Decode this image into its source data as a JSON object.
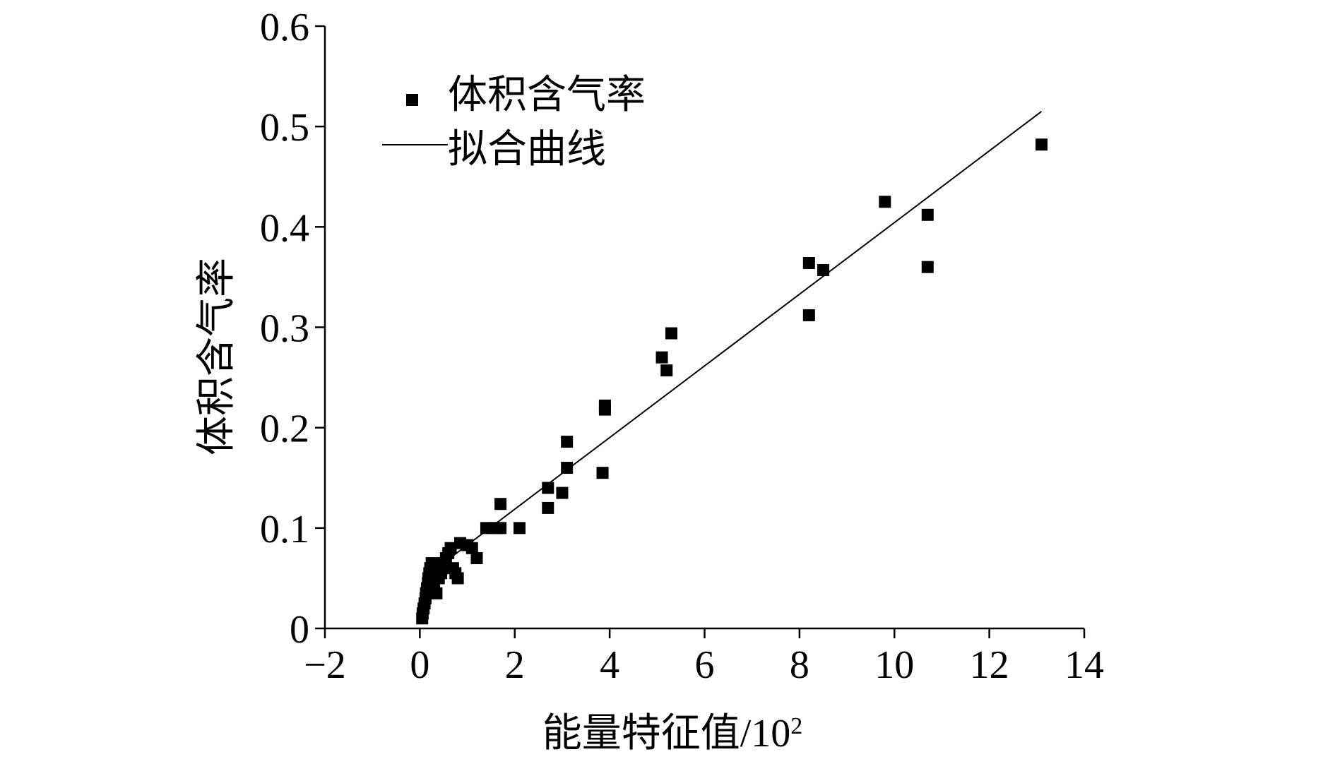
{
  "chart_data": {
    "type": "scatter",
    "title": "",
    "xlabel": "能量特征值/10",
    "xlabel_superscript": "2",
    "ylabel": "体积含气率",
    "xlim": [
      -2,
      14
    ],
    "ylim": [
      0,
      0.6
    ],
    "xticks": [
      -2,
      0,
      2,
      4,
      6,
      8,
      10,
      12,
      14
    ],
    "xtick_labels": [
      "−2",
      "0",
      "2",
      "4",
      "6",
      "8",
      "10",
      "12",
      "14"
    ],
    "yticks": [
      0,
      0.1,
      0.2,
      0.3,
      0.4,
      0.5,
      0.6
    ],
    "ytick_labels": [
      "0",
      "0.1",
      "0.2",
      "0.3",
      "0.4",
      "0.5",
      "0.6"
    ],
    "grid": false,
    "legend_position": "top-left",
    "series": [
      {
        "name": "体积含气率",
        "kind": "scatter",
        "marker": "square",
        "color": "#000000",
        "points": [
          [
            0.05,
            0.01
          ],
          [
            0.06,
            0.015
          ],
          [
            0.08,
            0.02
          ],
          [
            0.1,
            0.025
          ],
          [
            0.12,
            0.03
          ],
          [
            0.13,
            0.035
          ],
          [
            0.15,
            0.04
          ],
          [
            0.17,
            0.045
          ],
          [
            0.18,
            0.05
          ],
          [
            0.2,
            0.055
          ],
          [
            0.22,
            0.06
          ],
          [
            0.25,
            0.065
          ],
          [
            0.3,
            0.04
          ],
          [
            0.35,
            0.035
          ],
          [
            0.4,
            0.05
          ],
          [
            0.45,
            0.055
          ],
          [
            0.5,
            0.065
          ],
          [
            0.55,
            0.07
          ],
          [
            0.6,
            0.075
          ],
          [
            0.65,
            0.08
          ],
          [
            0.7,
            0.06
          ],
          [
            0.75,
            0.055
          ],
          [
            0.8,
            0.05
          ],
          [
            0.85,
            0.085
          ],
          [
            1.0,
            0.083
          ],
          [
            1.1,
            0.08
          ],
          [
            1.2,
            0.07
          ],
          [
            1.4,
            0.1
          ],
          [
            1.6,
            0.1
          ],
          [
            1.7,
            0.1
          ],
          [
            1.7,
            0.124
          ],
          [
            2.1,
            0.1
          ],
          [
            2.7,
            0.12
          ],
          [
            2.7,
            0.14
          ],
          [
            3.0,
            0.135
          ],
          [
            3.1,
            0.16
          ],
          [
            3.1,
            0.186
          ],
          [
            3.85,
            0.155
          ],
          [
            3.9,
            0.218
          ],
          [
            3.9,
            0.222
          ],
          [
            5.1,
            0.27
          ],
          [
            5.2,
            0.257
          ],
          [
            5.3,
            0.294
          ],
          [
            8.2,
            0.312
          ],
          [
            8.2,
            0.364
          ],
          [
            8.5,
            0.357
          ],
          [
            9.8,
            0.425
          ],
          [
            10.7,
            0.412
          ],
          [
            10.7,
            0.36
          ],
          [
            13.1,
            0.482
          ]
        ]
      },
      {
        "name": "拟合曲线",
        "kind": "line",
        "color": "#000000",
        "points": [
          [
            0.55,
            0.067
          ],
          [
            13.1,
            0.515
          ]
        ]
      }
    ]
  }
}
